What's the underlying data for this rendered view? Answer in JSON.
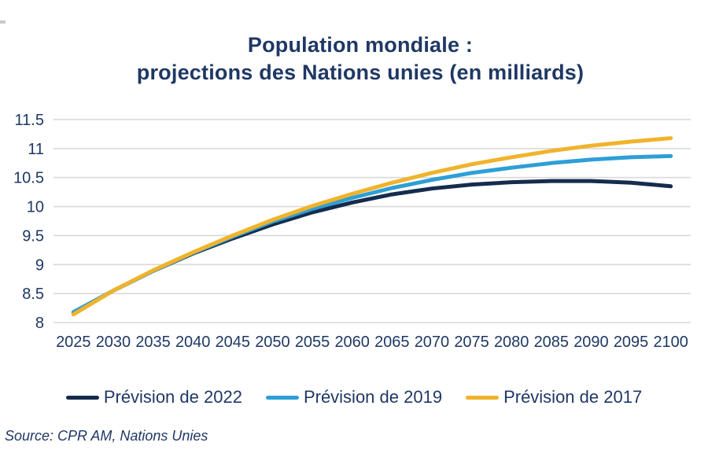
{
  "chart": {
    "title_line1": "Population mondiale :",
    "title_line2": "projections des Nations unies (en milliards)"
  },
  "source": "Source: CPR AM, Nations Unies",
  "colors": {
    "text": "#1F3864",
    "gridline": "#D9D9D9",
    "series_2022": "#152C4E",
    "series_2019": "#2E9FD6",
    "series_2017": "#F0B32B"
  },
  "chart_data": {
    "type": "line",
    "title": "Population mondiale : projections des Nations unies (en milliards)",
    "x": [
      2025,
      2030,
      2035,
      2040,
      2045,
      2050,
      2055,
      2060,
      2065,
      2070,
      2075,
      2080,
      2085,
      2090,
      2095,
      2100
    ],
    "series": [
      {
        "name": "Prévision de 2022",
        "color": "#152C4E",
        "values": [
          8.15,
          8.55,
          8.89,
          9.19,
          9.45,
          9.69,
          9.9,
          10.07,
          10.21,
          10.31,
          10.38,
          10.42,
          10.44,
          10.44,
          10.41,
          10.35
        ]
      },
      {
        "name": "Prévision de 2019",
        "color": "#2E9FD6",
        "values": [
          8.18,
          8.55,
          8.89,
          9.2,
          9.48,
          9.74,
          9.96,
          10.15,
          10.32,
          10.46,
          10.58,
          10.67,
          10.75,
          10.81,
          10.85,
          10.87
        ]
      },
      {
        "name": "Prévision de 2017",
        "color": "#F0B32B",
        "values": [
          8.14,
          8.55,
          8.9,
          9.21,
          9.5,
          9.77,
          10.01,
          10.22,
          10.41,
          10.58,
          10.73,
          10.85,
          10.96,
          11.05,
          11.12,
          11.18
        ]
      }
    ],
    "ylim": [
      8,
      11.5
    ],
    "yticks": [
      8,
      8.5,
      9,
      9.5,
      10,
      10.5,
      11,
      11.5
    ],
    "xlabel": "",
    "ylabel": "",
    "grid": true,
    "legend_position": "bottom"
  }
}
